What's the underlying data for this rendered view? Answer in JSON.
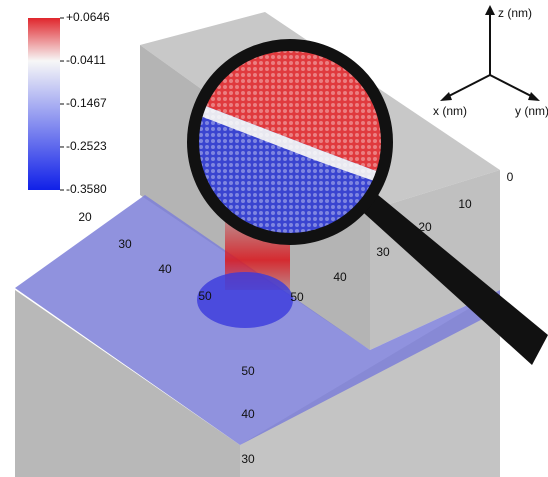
{
  "colorbar": {
    "ticks": [
      {
        "value": 0.0646,
        "label": "+0.0646"
      },
      -0.0411,
      -0.1467,
      -0.2523,
      {
        "value": -0.358,
        "label": "-0.3580"
      }
    ]
  },
  "axes": {
    "left_ticks": [
      20,
      30,
      40,
      50
    ],
    "vertical_ticks": [
      50,
      40,
      30
    ],
    "right_ticks": [
      0,
      10,
      20,
      30,
      40,
      50
    ]
  },
  "triad": {
    "z": "z (nm)",
    "x": "x (nm)",
    "y": "y (nm)"
  }
}
